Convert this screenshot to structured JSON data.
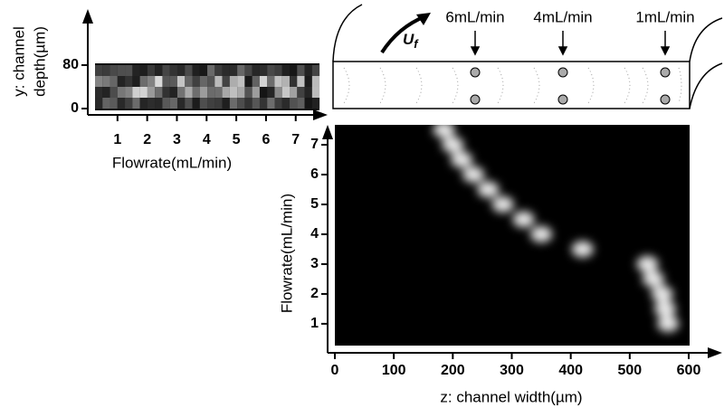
{
  "chart_data": [
    {
      "type": "heatmap",
      "x_label": "Flowrate(mL/min)",
      "y_label": [
        "y: channel",
        "depth(µm)"
      ],
      "xlim": [
        0,
        7.8
      ],
      "xticks": [
        1,
        2,
        3,
        4,
        5,
        6,
        7
      ],
      "ylim": [
        0,
        80
      ],
      "yticks": [
        0,
        80
      ]
    },
    {
      "type": "scatter",
      "x_label": "z: channel width(µm)",
      "y_label": "Flowrate(mL/min)",
      "x": [
        185,
        200,
        215,
        235,
        260,
        285,
        320,
        350,
        420,
        530,
        540,
        555,
        560,
        565
      ],
      "values": [
        7.5,
        7,
        6.5,
        6,
        5.5,
        5,
        4.5,
        4,
        3.5,
        3,
        2.5,
        2,
        1.5,
        1
      ],
      "color": "#ffffff",
      "xlim": [
        0,
        600
      ],
      "xticks": [
        0,
        100,
        200,
        300,
        400,
        500,
        600
      ],
      "ylim": [
        0.3,
        7.8
      ],
      "yticks": [
        1,
        2,
        3,
        4,
        5,
        6,
        7
      ]
    }
  ],
  "schematic": {
    "flow_symbol": {
      "main": "U",
      "sub": "f"
    },
    "labels": [
      "6mL/min",
      "4mL/min",
      "1mL/min"
    ]
  }
}
